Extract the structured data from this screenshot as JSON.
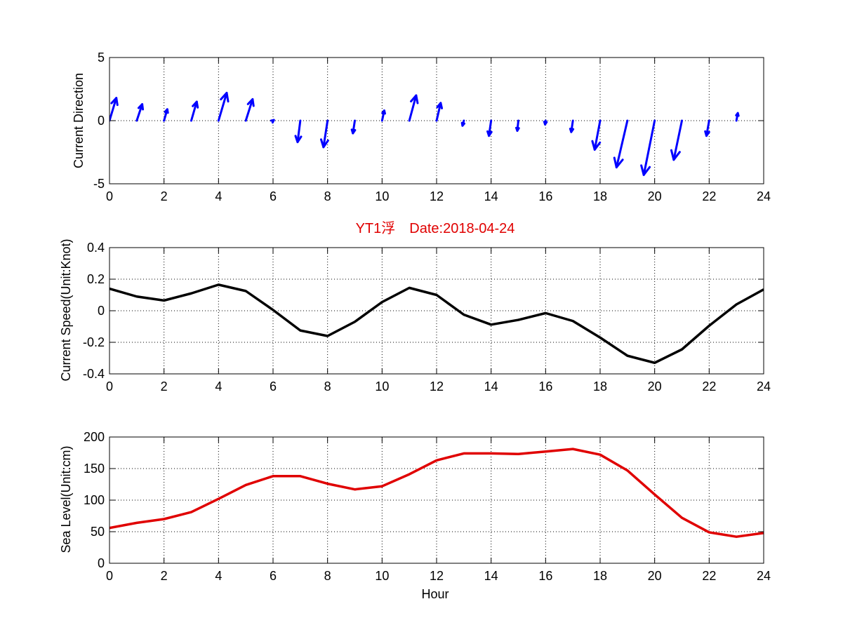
{
  "figure_title": "YT1浮　Date:2018-04-24",
  "colors": {
    "direction_arrows": "#0000ff",
    "speed_line": "#000000",
    "sea_level_line": "#e00000",
    "title_text": "#e00000",
    "axes": "#000000",
    "grid": "#000000",
    "background": "#ffffff"
  },
  "chart_data": [
    {
      "type": "quiver",
      "ylabel": "Current Direction",
      "xlabel": "",
      "xlim": [
        0,
        24
      ],
      "ylim": [
        -5,
        5
      ],
      "xticks": [
        0,
        2,
        4,
        6,
        8,
        10,
        12,
        14,
        16,
        18,
        20,
        22,
        24
      ],
      "yticks": [
        -5,
        0,
        5
      ],
      "grid": true,
      "series": [
        {
          "x": [
            0,
            1,
            2,
            3,
            4,
            5,
            6,
            7,
            8,
            9,
            10,
            11,
            12,
            13,
            14,
            15,
            16,
            17,
            18,
            19,
            20,
            21,
            22,
            23,
            24
          ],
          "u": [
            0.25,
            0.2,
            0.12,
            0.2,
            0.3,
            0.25,
            0.03,
            -0.1,
            -0.15,
            -0.07,
            0.08,
            0.25,
            0.15,
            -0.05,
            -0.08,
            -0.04,
            -0.02,
            -0.06,
            -0.2,
            -0.4,
            -0.4,
            -0.3,
            -0.1,
            0.05,
            0
          ],
          "v": [
            1.8,
            1.3,
            0.9,
            1.5,
            2.2,
            1.7,
            0.05,
            -1.7,
            -2.1,
            -1.0,
            0.8,
            2.0,
            1.4,
            -0.4,
            -1.2,
            -0.8,
            -0.3,
            -0.9,
            -2.3,
            -3.7,
            -4.3,
            -3.1,
            -1.2,
            0.6,
            0
          ]
        }
      ]
    },
    {
      "type": "line",
      "title": "YT1浮　Date:2018-04-24",
      "ylabel": "Current Speed(Unit:Knot)",
      "xlabel": "",
      "xlim": [
        0,
        24
      ],
      "ylim": [
        -0.4,
        0.4
      ],
      "xticks": [
        0,
        2,
        4,
        6,
        8,
        10,
        12,
        14,
        16,
        18,
        20,
        22,
        24
      ],
      "yticks": [
        -0.4,
        -0.2,
        0,
        0.2,
        0.4
      ],
      "grid": true,
      "series": [
        {
          "x": [
            0,
            1,
            2,
            3,
            4,
            5,
            6,
            7,
            8,
            9,
            10,
            11,
            12,
            13,
            14,
            15,
            16,
            17,
            18,
            19,
            20,
            21,
            22,
            23,
            24
          ],
          "values": [
            0.14,
            0.09,
            0.065,
            0.11,
            0.165,
            0.125,
            0.005,
            -0.125,
            -0.16,
            -0.07,
            0.055,
            0.145,
            0.1,
            -0.025,
            -0.088,
            -0.058,
            -0.015,
            -0.065,
            -0.17,
            -0.285,
            -0.33,
            -0.245,
            -0.095,
            0.04,
            0.135
          ]
        }
      ]
    },
    {
      "type": "line",
      "ylabel": "Sea Level(Unit:cm)",
      "xlabel": "Hour",
      "xlim": [
        0,
        24
      ],
      "ylim": [
        0,
        200
      ],
      "xticks": [
        0,
        2,
        4,
        6,
        8,
        10,
        12,
        14,
        16,
        18,
        20,
        22,
        24
      ],
      "yticks": [
        0,
        50,
        100,
        150,
        200
      ],
      "grid": true,
      "series": [
        {
          "x": [
            0,
            1,
            2,
            3,
            4,
            5,
            6,
            7,
            8,
            9,
            10,
            11,
            12,
            13,
            14,
            15,
            16,
            17,
            18,
            19,
            20,
            21,
            22,
            23,
            24
          ],
          "values": [
            56,
            64,
            70,
            81,
            102,
            124,
            138,
            138,
            126,
            117,
            122,
            141,
            163,
            174,
            174,
            173,
            177,
            181,
            172,
            147,
            109,
            72,
            49,
            42,
            48
          ]
        }
      ]
    }
  ]
}
